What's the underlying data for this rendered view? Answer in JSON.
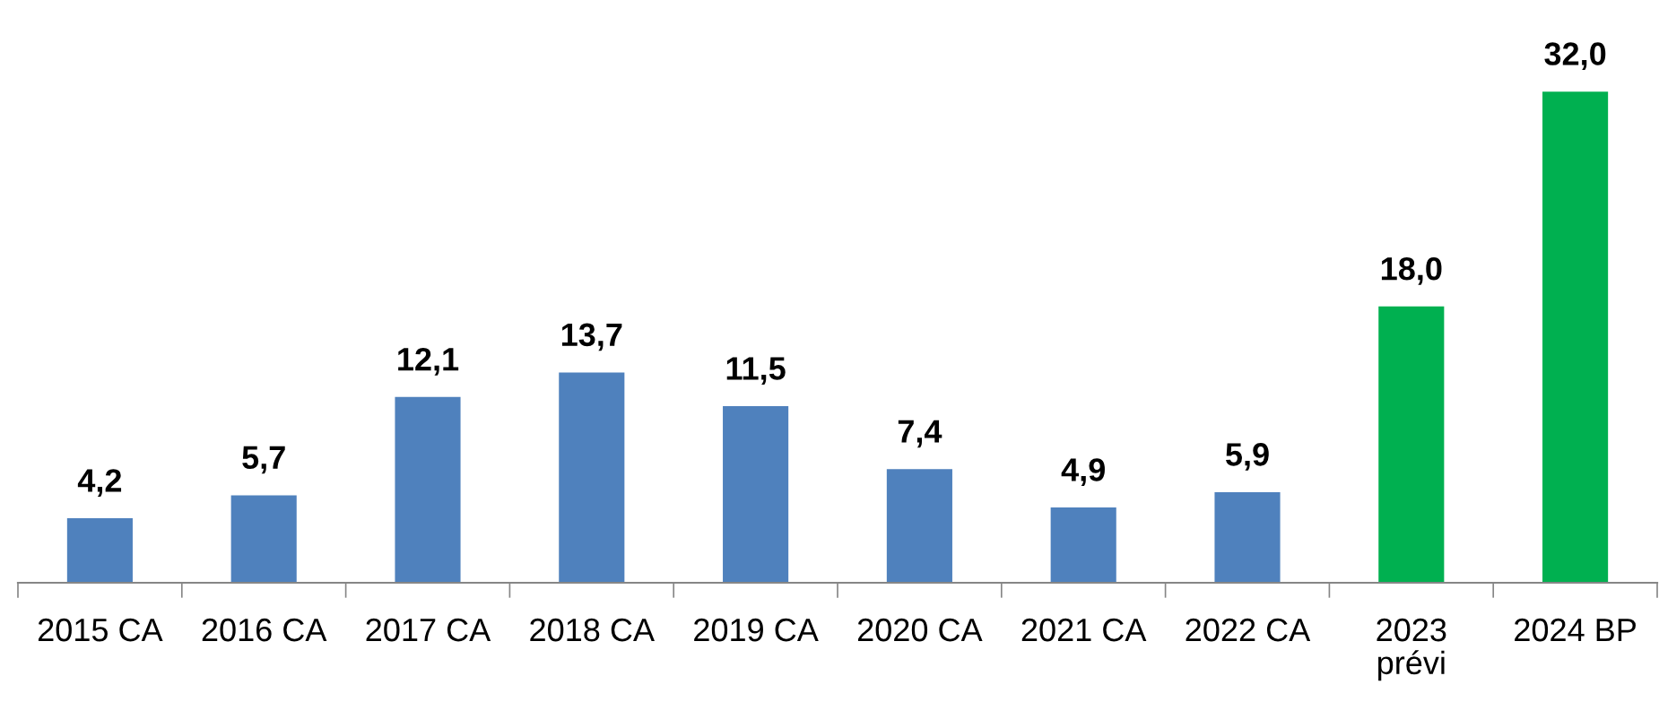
{
  "chart_data": {
    "type": "bar",
    "categories": [
      "2015 CA",
      "2016 CA",
      "2017 CA",
      "2018 CA",
      "2019 CA",
      "2020 CA",
      "2021 CA",
      "2022 CA",
      "2023\nprévi",
      "2024 BP"
    ],
    "values": [
      4.2,
      5.7,
      12.1,
      13.7,
      11.5,
      7.4,
      4.9,
      5.9,
      18.0,
      32.0
    ],
    "colors": [
      "#4f81bd",
      "#4f81bd",
      "#4f81bd",
      "#4f81bd",
      "#4f81bd",
      "#4f81bd",
      "#4f81bd",
      "#4f81bd",
      "#00b050",
      "#00b050"
    ],
    "value_labels": [
      "4,2",
      "5,7",
      "12,1",
      "13,7",
      "11,5",
      "7,4",
      "4,9",
      "5,9",
      "18,0",
      "32,0"
    ],
    "grid": false,
    "legend": false
  }
}
